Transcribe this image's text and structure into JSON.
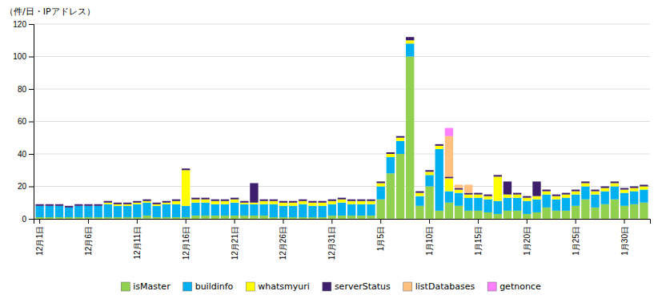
{
  "chart_data": {
    "type": "bar",
    "stacked": true,
    "grid": true,
    "legend": "bottom",
    "ylabel": "（件/日・IPアドレス）",
    "ylim": [
      0,
      120
    ],
    "yticks": [
      0,
      20,
      40,
      60,
      80,
      100,
      120
    ],
    "categories": [
      "12月1日",
      null,
      null,
      null,
      null,
      "12月6日",
      null,
      null,
      null,
      null,
      "12月11日",
      null,
      null,
      null,
      null,
      "12月16日",
      null,
      null,
      null,
      null,
      "12月21日",
      null,
      null,
      null,
      null,
      "12月26日",
      null,
      null,
      null,
      null,
      "12月31日",
      null,
      null,
      null,
      null,
      "1月5日",
      null,
      null,
      null,
      null,
      "1月10日",
      null,
      null,
      null,
      null,
      "1月15日",
      null,
      null,
      null,
      null,
      "1月20日",
      null,
      null,
      null,
      null,
      "1月25日",
      null,
      null,
      null,
      null,
      "1月30日",
      null,
      null
    ],
    "series": [
      {
        "name": "isMaster",
        "color": "#92d050",
        "values": [
          1,
          1,
          1,
          1,
          1,
          1,
          1,
          1,
          1,
          1,
          1,
          2,
          1,
          1,
          1,
          1,
          2,
          2,
          2,
          2,
          2,
          2,
          2,
          2,
          1,
          1,
          1,
          1,
          1,
          1,
          2,
          2,
          2,
          2,
          2,
          12,
          28,
          40,
          100,
          8,
          20,
          5,
          10,
          8,
          5,
          5,
          4,
          3,
          5,
          5,
          3,
          4,
          7,
          5,
          5,
          8,
          12,
          7,
          9,
          12,
          8,
          9,
          10
        ]
      },
      {
        "name": "buildinfo",
        "color": "#00b0f0",
        "values": [
          7,
          7,
          7,
          6,
          7,
          7,
          7,
          8,
          7,
          7,
          8,
          8,
          7,
          8,
          8,
          7,
          8,
          8,
          7,
          7,
          8,
          7,
          7,
          7,
          8,
          7,
          7,
          8,
          7,
          7,
          7,
          8,
          7,
          7,
          7,
          8,
          10,
          8,
          8,
          6,
          7,
          38,
          7,
          8,
          8,
          8,
          8,
          8,
          8,
          8,
          8,
          8,
          8,
          7,
          8,
          7,
          8,
          8,
          8,
          8,
          8,
          8,
          8
        ]
      },
      {
        "name": "whatsmyuri",
        "color": "#ffff00",
        "values": [
          0,
          0,
          0,
          0,
          0,
          0,
          0,
          1,
          1,
          1,
          1,
          1,
          1,
          1,
          2,
          22,
          2,
          2,
          2,
          2,
          2,
          1,
          1,
          2,
          2,
          2,
          2,
          2,
          2,
          2,
          2,
          2,
          2,
          2,
          2,
          2,
          2,
          2,
          2,
          2,
          2,
          2,
          8,
          2,
          2,
          2,
          2,
          15,
          2,
          2,
          2,
          2,
          2,
          2,
          2,
          2,
          2,
          2,
          2,
          2,
          2,
          2,
          2
        ]
      },
      {
        "name": "serverStatus",
        "color": "#3d1f6e",
        "values": [
          1,
          1,
          1,
          1,
          1,
          1,
          1,
          1,
          1,
          1,
          1,
          1,
          1,
          1,
          1,
          1,
          1,
          1,
          1,
          1,
          1,
          1,
          12,
          1,
          1,
          1,
          1,
          1,
          1,
          1,
          1,
          1,
          1,
          1,
          1,
          1,
          1,
          1,
          2,
          1,
          1,
          1,
          1,
          1,
          1,
          1,
          1,
          1,
          8,
          1,
          1,
          9,
          1,
          1,
          1,
          1,
          1,
          1,
          1,
          1,
          1,
          1,
          1
        ]
      },
      {
        "name": "listDatabases",
        "color": "#ffc080",
        "values": [
          0,
          0,
          0,
          0,
          0,
          0,
          0,
          0,
          0,
          0,
          0,
          0,
          0,
          0,
          0,
          0,
          0,
          0,
          0,
          0,
          0,
          0,
          0,
          0,
          0,
          0,
          0,
          0,
          0,
          0,
          0,
          0,
          0,
          0,
          0,
          0,
          0,
          0,
          0,
          0,
          0,
          0,
          25,
          2,
          5,
          0,
          0,
          0,
          0,
          0,
          0,
          0,
          0,
          0,
          0,
          0,
          0,
          0,
          0,
          0,
          0,
          0,
          0
        ]
      },
      {
        "name": "getnonce",
        "color": "#ff80ff",
        "values": [
          0,
          0,
          0,
          0,
          0,
          0,
          0,
          0,
          0,
          0,
          0,
          0,
          0,
          0,
          0,
          0,
          0,
          0,
          0,
          0,
          0,
          0,
          0,
          0,
          0,
          0,
          0,
          0,
          0,
          0,
          0,
          0,
          0,
          0,
          0,
          0,
          0,
          0,
          0,
          0,
          0,
          0,
          5,
          0,
          0,
          0,
          0,
          0,
          0,
          0,
          0,
          0,
          0,
          0,
          0,
          0,
          0,
          0,
          0,
          0,
          0,
          0,
          0
        ]
      }
    ]
  }
}
